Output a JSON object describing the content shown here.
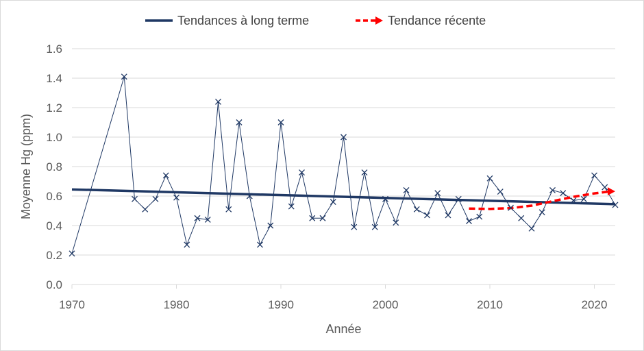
{
  "chart_data": {
    "type": "line",
    "title": "",
    "xlabel": "Année",
    "ylabel": "Moyenne Hg (ppm)",
    "xlim": [
      1970,
      2022
    ],
    "ylim": [
      0,
      1.6
    ],
    "x_ticks": [
      1970,
      1980,
      1990,
      2000,
      2010,
      2020
    ],
    "y_ticks": [
      "0.0",
      "0.2",
      "0.4",
      "0.6",
      "0.8",
      "1.0",
      "1.2",
      "1.4",
      "1.6"
    ],
    "grid": "horizontal",
    "legend_position": "top",
    "series": [
      {
        "key": "observed",
        "marker": "x",
        "color": "#1f3864",
        "points": [
          [
            1970,
            0.21
          ],
          [
            1975,
            1.41
          ],
          [
            1976,
            0.58
          ],
          [
            1977,
            0.51
          ],
          [
            1978,
            0.58
          ],
          [
            1979,
            0.74
          ],
          [
            1980,
            0.59
          ],
          [
            1981,
            0.27
          ],
          [
            1982,
            0.45
          ],
          [
            1983,
            0.44
          ],
          [
            1984,
            1.24
          ],
          [
            1985,
            0.51
          ],
          [
            1986,
            1.1
          ],
          [
            1987,
            0.6
          ],
          [
            1988,
            0.27
          ],
          [
            1989,
            0.4
          ],
          [
            1990,
            1.1
          ],
          [
            1991,
            0.53
          ],
          [
            1992,
            0.76
          ],
          [
            1993,
            0.45
          ],
          [
            1994,
            0.45
          ],
          [
            1995,
            0.56
          ],
          [
            1996,
            1.0
          ],
          [
            1997,
            0.39
          ],
          [
            1998,
            0.76
          ],
          [
            1999,
            0.39
          ],
          [
            2000,
            0.58
          ],
          [
            2001,
            0.42
          ],
          [
            2002,
            0.64
          ],
          [
            2003,
            0.51
          ],
          [
            2004,
            0.47
          ],
          [
            2005,
            0.62
          ],
          [
            2006,
            0.47
          ],
          [
            2007,
            0.58
          ],
          [
            2008,
            0.43
          ],
          [
            2009,
            0.46
          ],
          [
            2010,
            0.72
          ],
          [
            2011,
            0.63
          ],
          [
            2012,
            0.52
          ],
          [
            2013,
            0.45
          ],
          [
            2014,
            0.38
          ],
          [
            2015,
            0.49
          ],
          [
            2016,
            0.64
          ],
          [
            2017,
            0.62
          ],
          [
            2018,
            0.57
          ],
          [
            2019,
            0.58
          ],
          [
            2020,
            0.74
          ],
          [
            2021,
            0.66
          ],
          [
            2022,
            0.54
          ]
        ]
      },
      {
        "key": "long_term",
        "name": "Tendances à long terme",
        "style": "solid",
        "color": "#1f3864",
        "points": [
          [
            1970,
            0.645
          ],
          [
            2022,
            0.545
          ]
        ]
      },
      {
        "key": "recent",
        "name": "Tendance récente",
        "style": "dashed-arrow",
        "color": "#ff0000",
        "points": [
          [
            2008,
            0.515
          ],
          [
            2010,
            0.513
          ],
          [
            2012,
            0.518
          ],
          [
            2014,
            0.535
          ],
          [
            2016,
            0.565
          ],
          [
            2018,
            0.595
          ],
          [
            2020,
            0.618
          ],
          [
            2022,
            0.632
          ]
        ]
      }
    ]
  }
}
